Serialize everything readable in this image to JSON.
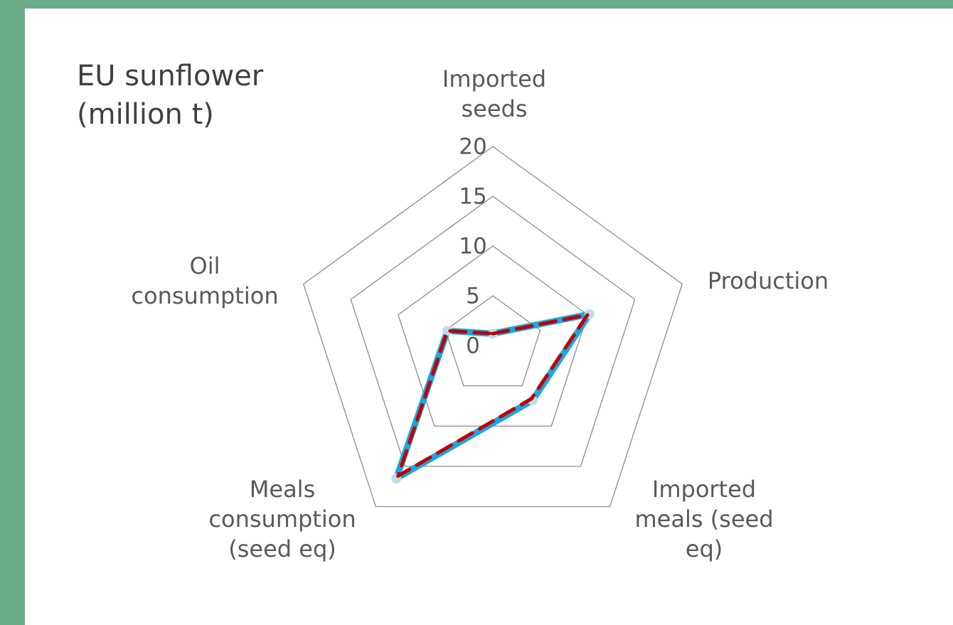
{
  "chart_data": {
    "type": "radar",
    "title": "EU sunflower (million t)",
    "categories": [
      "Imported seeds",
      "Production",
      "Imported meals (seed eq)",
      "Meals consumption (seed eq)",
      "Oil consumption"
    ],
    "series": [
      {
        "color": "#1aa7e0",
        "values": [
          1.2,
          10.2,
          6.8,
          16.5,
          4.8
        ]
      },
      {
        "color": "#c00000",
        "values": [
          1.2,
          10.0,
          6.6,
          16.2,
          4.8
        ]
      }
    ],
    "ylim": [
      0,
      20
    ],
    "yticks": [
      0,
      5,
      10,
      15,
      20
    ],
    "grid": true
  }
}
